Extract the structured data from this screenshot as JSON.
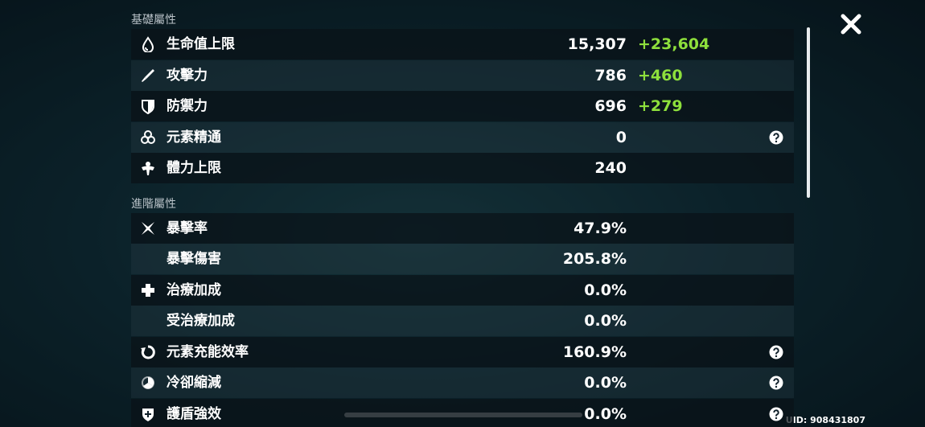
{
  "sections": [
    {
      "title": "基礎屬性",
      "rows": [
        {
          "label": "生命值上限",
          "value": "15,307",
          "bonus": "+23,604"
        },
        {
          "label": "攻擊力",
          "value": "786",
          "bonus": "+460"
        },
        {
          "label": "防禦力",
          "value": "696",
          "bonus": "+279"
        },
        {
          "label": "元素精通",
          "value": "0",
          "help": true
        },
        {
          "label": "體力上限",
          "value": "240"
        }
      ]
    },
    {
      "title": "進階屬性",
      "rows": [
        {
          "label": "暴擊率",
          "value": "47.9%"
        },
        {
          "label": "暴擊傷害",
          "value": "205.8%"
        },
        {
          "label": "治療加成",
          "value": "0.0%"
        },
        {
          "label": "受治療加成",
          "value": "0.0%"
        },
        {
          "label": "元素充能效率",
          "value": "160.9%",
          "help": true
        },
        {
          "label": "冷卻縮減",
          "value": "0.0%",
          "help": true
        },
        {
          "label": "護盾強效",
          "value": "0.0%",
          "help": true
        }
      ]
    }
  ],
  "uid": "UID: 908431807"
}
